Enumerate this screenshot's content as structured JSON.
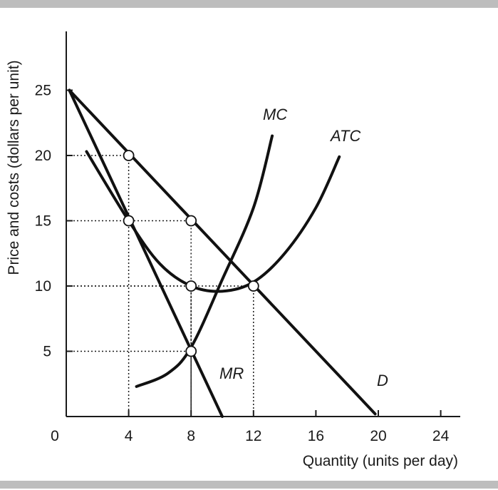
{
  "chart_data": {
    "type": "line",
    "title": "",
    "xlabel": "Quantity (units per day)",
    "ylabel": "Price and costs (dollars per unit)",
    "xlim": [
      0,
      25
    ],
    "ylim": [
      0,
      30
    ],
    "x_ticks": [
      0,
      4,
      8,
      12,
      16,
      20,
      24
    ],
    "y_ticks": [
      5,
      10,
      15,
      20,
      25
    ],
    "grid": false,
    "series": [
      {
        "name": "D",
        "x": [
          0.2,
          19.8
        ],
        "y": [
          25,
          0.2
        ]
      },
      {
        "name": "MR",
        "x": [
          0.2,
          10.0
        ],
        "y": [
          25,
          0
        ]
      },
      {
        "name": "MC",
        "x": [
          4.5,
          6.5,
          8.0,
          10.0,
          12.0,
          13.2
        ],
        "y": [
          2.3,
          3.3,
          5.3,
          10.5,
          16.0,
          21.5
        ]
      },
      {
        "name": "ATC",
        "x": [
          1.3,
          4.0,
          6.0,
          8.0,
          10.0,
          12.0,
          14.0,
          16.0,
          17.5
        ],
        "y": [
          20.3,
          15.0,
          11.7,
          10.0,
          9.6,
          10.3,
          12.5,
          16.0,
          19.9
        ]
      }
    ],
    "reference_points": [
      {
        "x": 4,
        "y": 20
      },
      {
        "x": 4,
        "y": 15
      },
      {
        "x": 8,
        "y": 15
      },
      {
        "x": 8,
        "y": 10
      },
      {
        "x": 8,
        "y": 5
      },
      {
        "x": 12,
        "y": 10
      }
    ],
    "dotted_guides": [
      {
        "x": 4,
        "y": 20
      },
      {
        "x": 8,
        "y": 15
      },
      {
        "x": 8,
        "y": 10
      },
      {
        "x": 12,
        "y": 10
      },
      {
        "x": 8,
        "y": 5
      }
    ]
  }
}
